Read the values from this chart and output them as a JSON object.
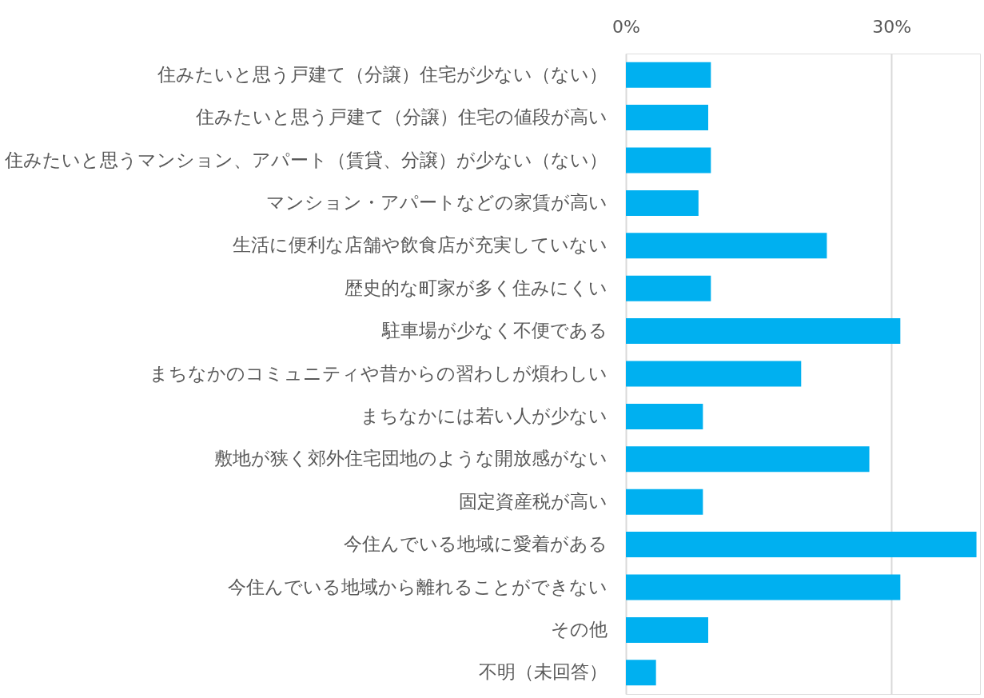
{
  "chart_data": {
    "type": "bar",
    "orientation": "horizontal",
    "categories": [
      "住みたいと思う戸建て（分譲）住宅が少ない（ない）",
      "住みたいと思う戸建て（分譲）住宅の値段が高い",
      "住みたいと思うマンション、アパート（賃貸、分譲）が少ない（ない）",
      "マンション・アパートなどの家賃が高い",
      "生活に便利な店舗や飲食店が充実していない",
      "歴史的な町家が多く住みにくい",
      "駐車場が少なく不便である",
      "まちなかのコミュニティや昔からの習わしが煩わしい",
      "まちなかには若い人が少ない",
      "敷地が狭く郊外住宅団地のような開放感がない",
      "固定資産税が高い",
      "今住んでいる地域に愛着がある",
      "今住んでいる地域から離れることができない",
      "その他",
      "不明（未回答）"
    ],
    "values": [
      9.6,
      9.3,
      9.6,
      8.2,
      22.7,
      9.6,
      31.0,
      19.8,
      8.7,
      27.5,
      8.7,
      39.6,
      31.0,
      9.3,
      3.4
    ],
    "color": "#00b0f0",
    "xlim": [
      0,
      40
    ],
    "xticks": [
      {
        "value": 0,
        "label": "0%"
      },
      {
        "value": 30,
        "label": "30%"
      }
    ],
    "grid": "x"
  }
}
